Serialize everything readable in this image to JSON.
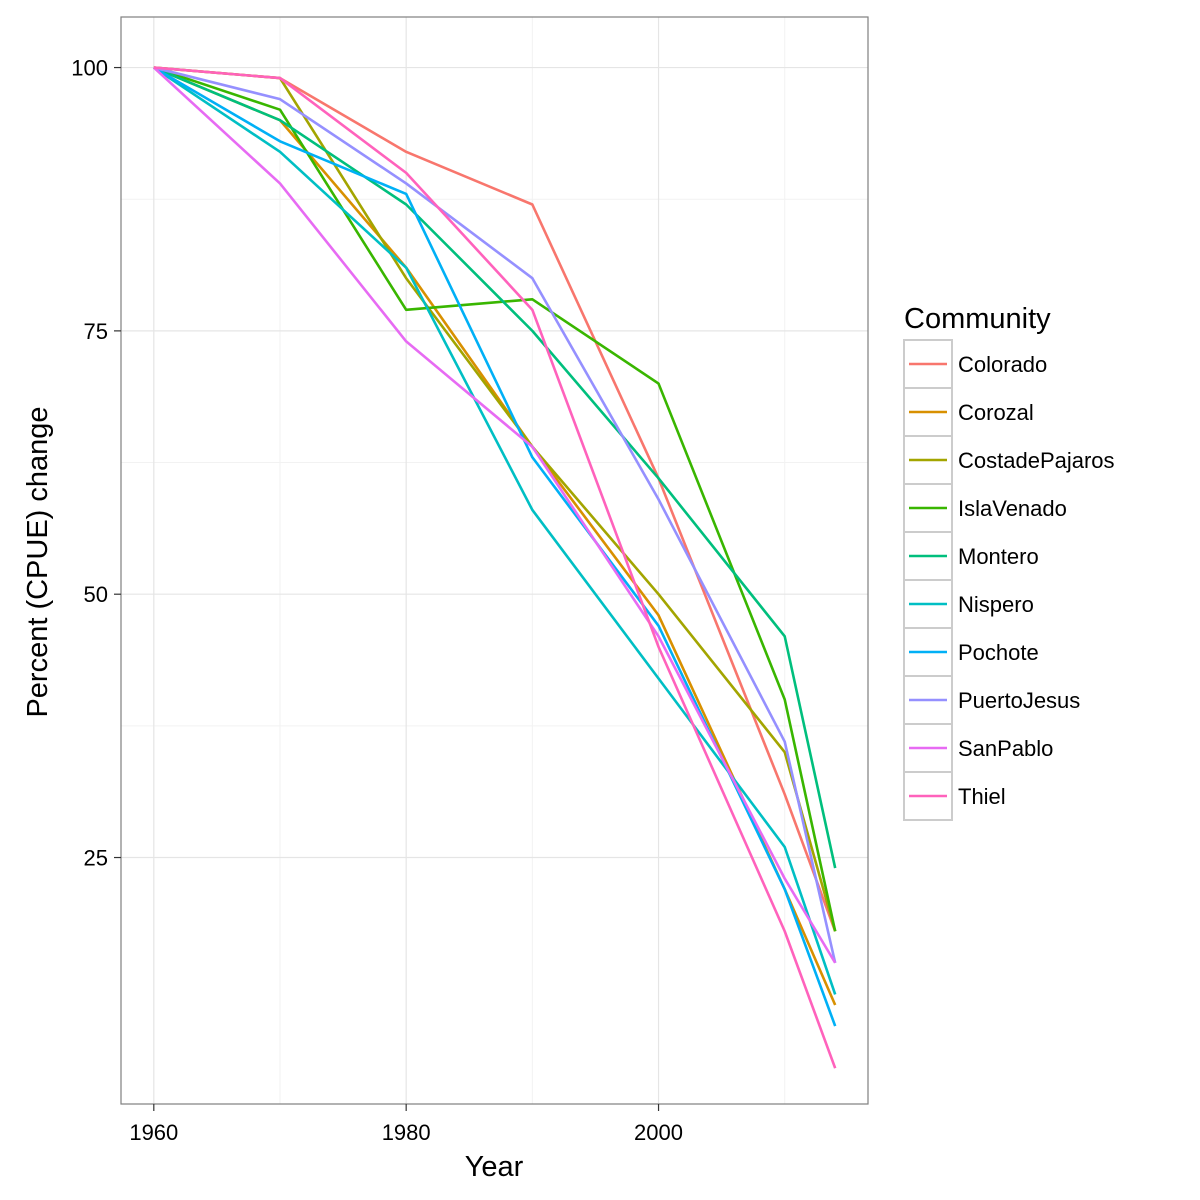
{
  "chart_data": {
    "type": "line",
    "xlabel": "Year",
    "ylabel": "Percent (CPUE) change",
    "xlim": [
      1957.4,
      2016.6
    ],
    "ylim": [
      1.6,
      104.8
    ],
    "xticks": [
      1960,
      1980,
      2000
    ],
    "yticks": [
      25,
      50,
      75,
      100
    ],
    "grid": true,
    "legend": {
      "title": "Community",
      "position": "right"
    },
    "x": [
      1960,
      1970,
      1980,
      1990,
      2000,
      2010,
      2014
    ],
    "series": [
      {
        "name": "Colorado",
        "color": "#F8766D",
        "values": [
          100,
          99,
          92,
          87,
          61,
          31,
          18
        ]
      },
      {
        "name": "Corozal",
        "color": "#D89000",
        "values": [
          100,
          95,
          81,
          64,
          48,
          22,
          11
        ]
      },
      {
        "name": "CostadePajaros",
        "color": "#A3A500",
        "values": [
          100,
          99,
          80,
          64,
          50,
          35,
          18
        ]
      },
      {
        "name": "IslaVenado",
        "color": "#39B600",
        "values": [
          100,
          96,
          77,
          78,
          70,
          40,
          18
        ]
      },
      {
        "name": "Montero",
        "color": "#00BF7D",
        "values": [
          100,
          95,
          87,
          75,
          61,
          46,
          24
        ]
      },
      {
        "name": "Nispero",
        "color": "#00BFC4",
        "values": [
          100,
          92,
          81,
          58,
          42,
          26,
          12
        ]
      },
      {
        "name": "Pochote",
        "color": "#00B0F6",
        "values": [
          100,
          93,
          88,
          63,
          47,
          22,
          9
        ]
      },
      {
        "name": "PuertoJesus",
        "color": "#9590FF",
        "values": [
          100,
          97,
          89,
          80,
          59,
          36,
          15
        ]
      },
      {
        "name": "SanPablo",
        "color": "#E76BF3",
        "values": [
          100,
          89,
          74,
          64,
          46,
          23,
          15
        ]
      },
      {
        "name": "Thiel",
        "color": "#FF62BC",
        "values": [
          100,
          99,
          90,
          77,
          45,
          18,
          5
        ]
      }
    ]
  }
}
